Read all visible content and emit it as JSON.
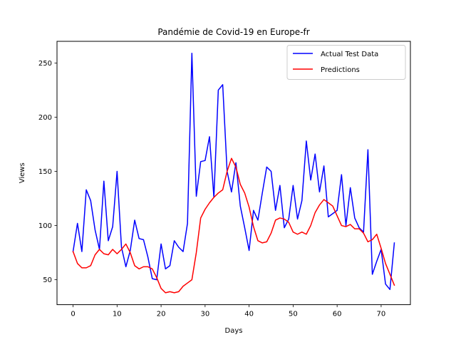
{
  "chart_data": {
    "type": "line",
    "title": "Pandémie de Covid-19 en Europe-fr",
    "xlabel": "Days",
    "ylabel": "Views",
    "xlim": [
      -3.65,
      76.65
    ],
    "ylim": [
      27,
      270
    ],
    "xticks": [
      0,
      10,
      20,
      30,
      40,
      50,
      60,
      70
    ],
    "yticks": [
      50,
      100,
      150,
      200,
      250
    ],
    "grid": false,
    "legend_position": "top-right",
    "series": [
      {
        "name": "Actual Test Data",
        "color": "#0000ff",
        "values": [
          76,
          102,
          76,
          133,
          123,
          96,
          78,
          141,
          86,
          99,
          150,
          80,
          62,
          77,
          105,
          88,
          87,
          71,
          51,
          50,
          83,
          60,
          63,
          86,
          80,
          76,
          102,
          259,
          127,
          159,
          160,
          182,
          126,
          225,
          230,
          150,
          131,
          158,
          118,
          98,
          77,
          114,
          105,
          130,
          154,
          150,
          114,
          137,
          98,
          106,
          137,
          106,
          123,
          178,
          142,
          166,
          131,
          155,
          108,
          111,
          114,
          147,
          100,
          135,
          107,
          98,
          94,
          170,
          55,
          67,
          78,
          46,
          41,
          84
        ]
      },
      {
        "name": "Predictions",
        "color": "#ff0000",
        "values": [
          76,
          65,
          61,
          61,
          63,
          73,
          78,
          74,
          73,
          78,
          74,
          78,
          83,
          75,
          63,
          60,
          62,
          62,
          60,
          52,
          42,
          38,
          39,
          38,
          39,
          44,
          47,
          50,
          75,
          107,
          115,
          121,
          126,
          130,
          133,
          150,
          162,
          154,
          138,
          130,
          117,
          99,
          86,
          84,
          85,
          93,
          105,
          107,
          106,
          103,
          94,
          92,
          94,
          92,
          100,
          112,
          119,
          124,
          121,
          118,
          109,
          100,
          99,
          101,
          97,
          97,
          93,
          85,
          87,
          92,
          79,
          65,
          55,
          45
        ]
      }
    ]
  }
}
